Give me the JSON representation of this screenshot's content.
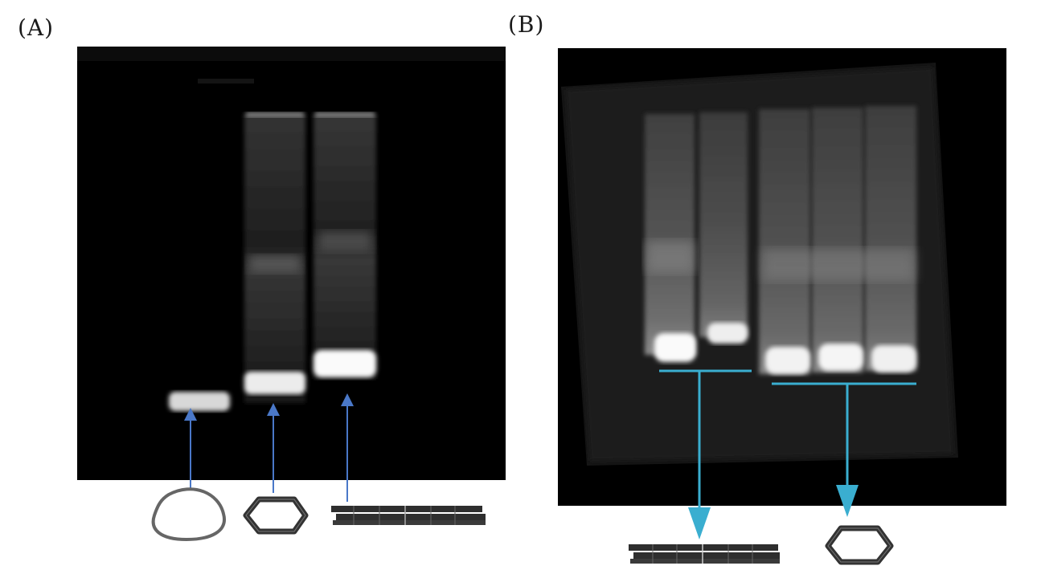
{
  "panels": {
    "a": {
      "label": "(A)"
    },
    "b": {
      "label": "(B)"
    }
  },
  "colors": {
    "arrow_a": "#4a78c8",
    "arrow_b": "#3aaed0",
    "gel_bg": "#000000",
    "band": "#f4f4f4",
    "icon_stroke": "#555555"
  },
  "icons": {
    "a": [
      "relaxed-circle-icon",
      "hexagon-ring-icon",
      "linear-stack-icon"
    ],
    "b": [
      "linear-stack-icon",
      "hexagon-ring-icon"
    ]
  }
}
